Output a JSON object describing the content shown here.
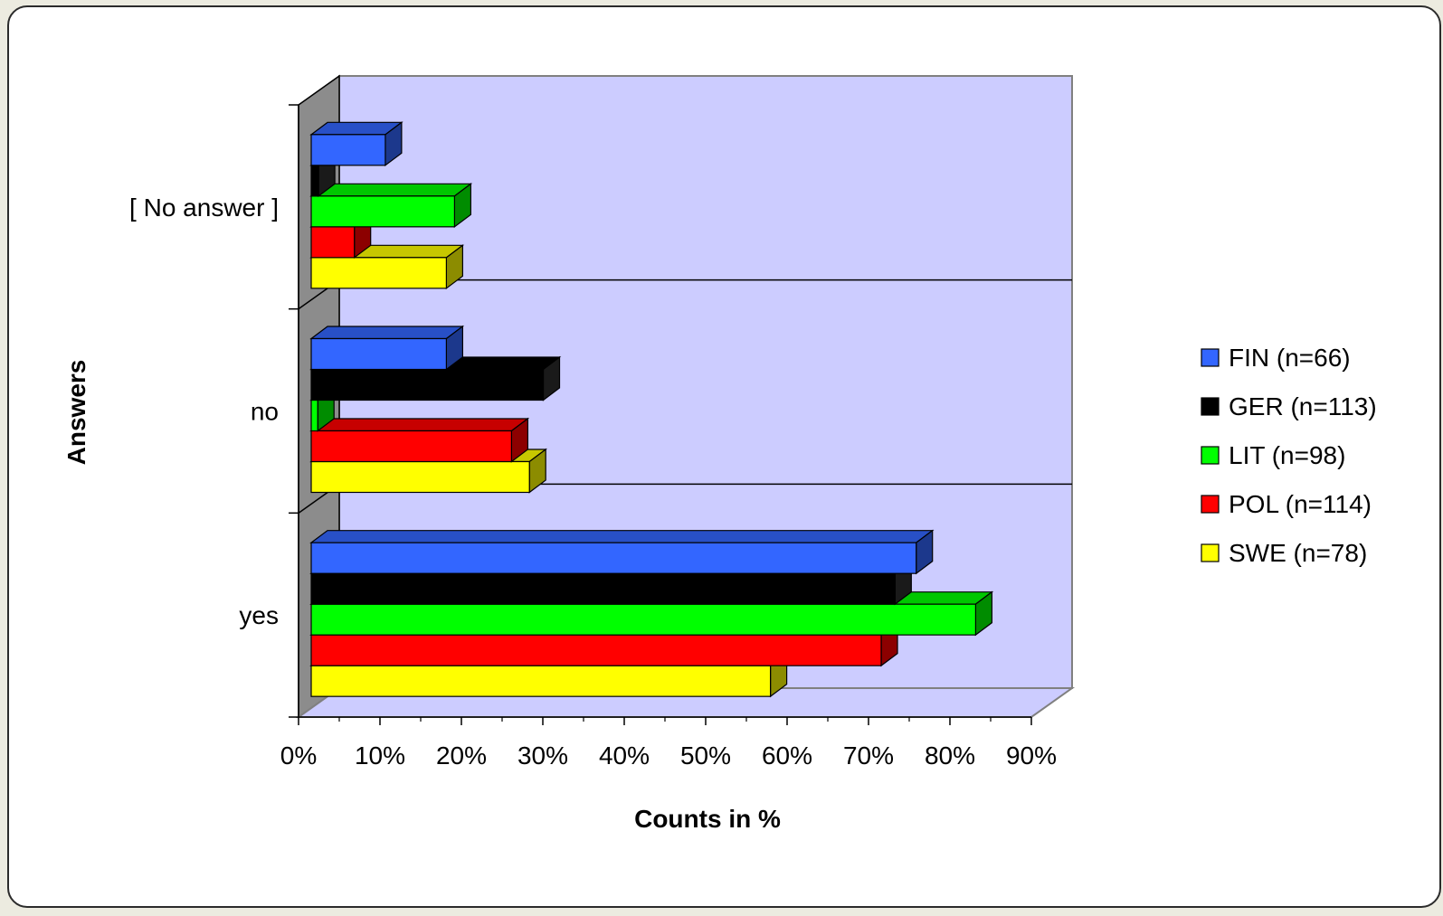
{
  "chart_data": {
    "type": "bar",
    "orientation": "horizontal",
    "three_d": true,
    "categories": [
      "[ No answer ]",
      "no",
      "yes"
    ],
    "series": [
      {
        "name": "FIN (n=66)",
        "color": "#3366ff",
        "values": [
          9.1,
          16.6,
          74.3
        ]
      },
      {
        "name": "GER (n=113)",
        "color": "#000000",
        "values": [
          0.9,
          28.5,
          71.7
        ]
      },
      {
        "name": "LIT (n=98)",
        "color": "#00ff00",
        "values": [
          17.6,
          0.8,
          81.6
        ]
      },
      {
        "name": "POL (n=114)",
        "color": "#ff0000",
        "values": [
          5.3,
          24.6,
          70.0
        ]
      },
      {
        "name": "SWE (n=78)",
        "color": "#ffff00",
        "values": [
          16.6,
          26.8,
          56.4
        ]
      }
    ],
    "xlabel": "Counts in %",
    "ylabel": "Answers",
    "xlim": [
      0,
      90
    ],
    "x_tick_labels": [
      "0%",
      "10%",
      "20%",
      "30%",
      "40%",
      "50%",
      "60%",
      "70%",
      "80%",
      "90%"
    ],
    "grid": false,
    "legend_position": "right",
    "plot_background": "#ccccff"
  }
}
